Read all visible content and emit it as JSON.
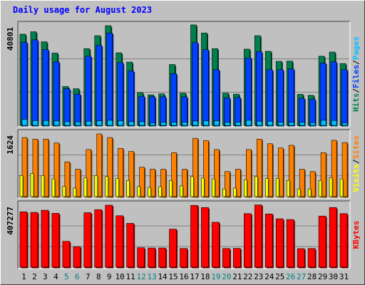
{
  "chart_data": {
    "type": "bar",
    "title": "Daily usage for August 2023",
    "categories": [
      "1",
      "2",
      "3",
      "4",
      "5",
      "6",
      "7",
      "8",
      "9",
      "10",
      "11",
      "12",
      "13",
      "14",
      "15",
      "16",
      "17",
      "18",
      "19",
      "20",
      "21",
      "22",
      "23",
      "24",
      "25",
      "26",
      "27",
      "28",
      "29",
      "30",
      "31"
    ],
    "weekend_days": [
      "5",
      "6",
      "12",
      "13",
      "19",
      "20",
      "26",
      "27"
    ],
    "colors": {
      "weekday_label": "#000000",
      "weekend_label": "#008080",
      "title": "#0000ff",
      "hits": "#00804c",
      "files": "#0040ff",
      "pages": "#00c0ff",
      "visits": "#ffff00",
      "sites": "#ff8000",
      "kbytes": "#ff0000",
      "slash": "#000000"
    },
    "panels": [
      {
        "id": "hits-files-pages",
        "max_label": "40801",
        "ymax": 40801,
        "legend": [
          {
            "text": "Hits",
            "color": "#00804c"
          },
          {
            "text": "/",
            "color": "#000000"
          },
          {
            "text": "Files",
            "color": "#0040ff"
          },
          {
            "text": "/",
            "color": "#000000"
          },
          {
            "text": "Pages",
            "color": "#00c0ff"
          }
        ],
        "series": [
          {
            "name": "Hits",
            "values": [
              37300,
              38300,
              34200,
              29600,
              15900,
              15000,
              31400,
              36700,
              40801,
              29700,
              25900,
              13400,
              12500,
              12900,
              24900,
              13200,
              41100,
              37800,
              31400,
              13200,
              12800,
              31200,
              36700,
              30300,
              26200,
              26300,
              12700,
              12300,
              28300,
              30000,
              25300
            ]
          },
          {
            "name": "Files",
            "values": [
              34000,
              35000,
              31000,
              26000,
              15000,
              12800,
              28300,
              32800,
              37800,
              25700,
              22300,
              11900,
              11700,
              11700,
              21200,
              11700,
              33900,
              31000,
              22800,
              11300,
              11400,
              27600,
              30200,
              22800,
              22800,
              23100,
              11100,
              10700,
              25500,
              26000,
              22800
            ]
          },
          {
            "name": "Pages",
            "values": [
              2500,
              2000,
              2000,
              1900,
              1500,
              1400,
              1700,
              1900,
              2100,
              1900,
              1500,
              1500,
              1000,
              1300,
              1300,
              1300,
              1800,
              1900,
              1900,
              1300,
              1300,
              2100,
              1700,
              1700,
              1300,
              1300,
              1300,
              1100,
              2100,
              2000,
              1000
            ]
          }
        ]
      },
      {
        "id": "visits-sites",
        "max_label": "1624",
        "ymax": 1624,
        "legend": [
          {
            "text": "Visits",
            "color": "#ffff00"
          },
          {
            "text": "/",
            "color": "#000000"
          },
          {
            "text": "Sites",
            "color": "#ff8000"
          }
        ],
        "series": [
          {
            "name": "Sites",
            "values": [
              1530,
              1490,
              1490,
              1390,
              900,
              710,
              1220,
              1624,
              1530,
              1250,
              1170,
              760,
              710,
              710,
              1140,
              710,
              1510,
              1450,
              1220,
              650,
              710,
              1220,
              1490,
              1370,
              1260,
              1330,
              710,
              650,
              1140,
              1460,
              1400
            ]
          },
          {
            "name": "Visits",
            "values": [
              550,
              600,
              550,
              460,
              270,
              220,
              490,
              550,
              520,
              470,
              420,
              260,
              240,
              260,
              420,
              280,
              520,
              480,
              460,
              200,
              220,
              440,
              520,
              470,
              470,
              420,
              200,
              200,
              420,
              490,
              460
            ]
          }
        ]
      },
      {
        "id": "kbytes",
        "max_label": "407277",
        "ymax": 407277,
        "legend": [
          {
            "text": "KBytes",
            "color": "#ff0000"
          }
        ],
        "series": [
          {
            "name": "KBytes",
            "values": [
              364000,
              360000,
              374000,
              354000,
              170000,
              135000,
              358000,
              378000,
              407277,
              338000,
              288000,
              128000,
              126000,
              126000,
              250000,
              123000,
              406000,
              392000,
              295000,
              123000,
              124000,
              352000,
              409000,
              350000,
              318000,
              313000,
              122000,
              123000,
              336000,
              392000,
              352000
            ]
          }
        ]
      }
    ]
  }
}
